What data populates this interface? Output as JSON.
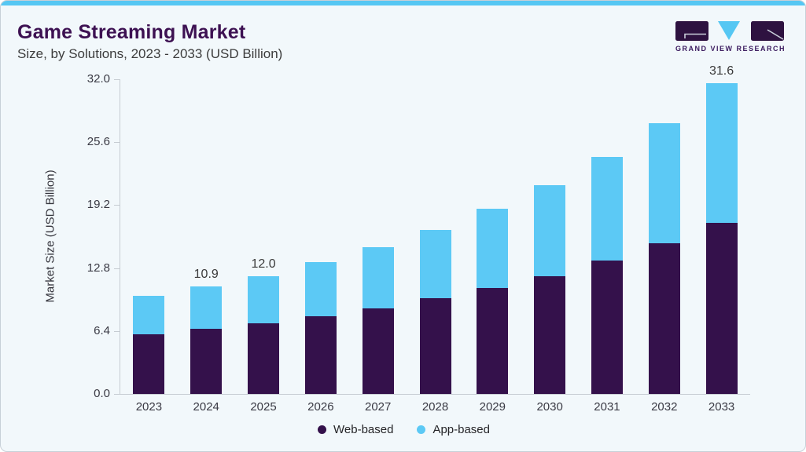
{
  "header": {
    "title": "Game Streaming Market",
    "subtitle": "Size, by Solutions, 2023 - 2033 (USD Billion)",
    "logo_text": "GRAND VIEW RESEARCH"
  },
  "colors": {
    "accent_blue": "#56C7F3",
    "web_based": "#34114B",
    "app_based": "#5CC9F5",
    "title_purple": "#3D1152",
    "logo_purple": "#2E1240"
  },
  "chart_data": {
    "type": "bar",
    "stacked": true,
    "title": "Game Streaming Market Size, by Solutions, 2023 - 2033 (USD Billion)",
    "categories": [
      "2023",
      "2024",
      "2025",
      "2026",
      "2027",
      "2028",
      "2029",
      "2030",
      "2031",
      "2032",
      "2033"
    ],
    "series": [
      {
        "name": "Web-based",
        "color": "#34114B",
        "values": [
          6.1,
          6.6,
          7.2,
          7.9,
          8.7,
          9.7,
          10.8,
          12.0,
          13.6,
          15.3,
          17.4
        ]
      },
      {
        "name": "App-based",
        "color": "#5CC9F5",
        "values": [
          3.9,
          4.3,
          4.8,
          5.5,
          6.2,
          7.0,
          8.0,
          9.2,
          10.5,
          12.2,
          14.2
        ]
      }
    ],
    "totals": [
      10.0,
      10.9,
      12.0,
      13.4,
      14.9,
      16.7,
      18.8,
      21.2,
      24.1,
      27.5,
      31.6
    ],
    "total_labels_shown": [
      null,
      "10.9",
      "12.0",
      null,
      null,
      null,
      null,
      null,
      null,
      null,
      "31.6"
    ],
    "xlabel": "",
    "ylabel": "Market Size (USD Billion)",
    "yticks": [
      "0.0",
      "6.4",
      "12.8",
      "19.2",
      "25.6",
      "32.0"
    ],
    "ylim": [
      0,
      32
    ],
    "grid": false,
    "legend_position": "bottom"
  },
  "legend": {
    "items": [
      {
        "label": "Web-based",
        "color": "#34114B"
      },
      {
        "label": "App-based",
        "color": "#5CC9F5"
      }
    ]
  }
}
